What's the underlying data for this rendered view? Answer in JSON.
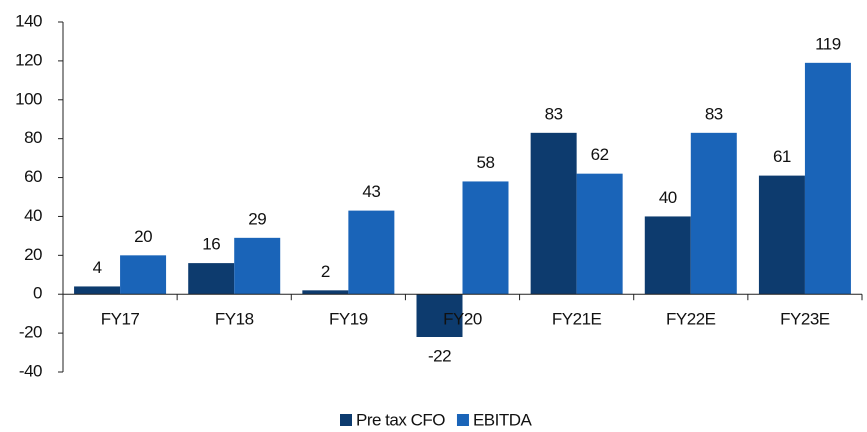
{
  "chart_data": {
    "type": "bar",
    "categories": [
      "FY17",
      "FY18",
      "FY19",
      "FY20",
      "FY21E",
      "FY22E",
      "FY23E"
    ],
    "series": [
      {
        "name": "Pre tax CFO",
        "color": "#0d3b6e",
        "values": [
          4,
          16,
          2,
          -22,
          83,
          40,
          61
        ]
      },
      {
        "name": "EBITDA",
        "color": "#1a64b8",
        "values": [
          20,
          29,
          43,
          58,
          62,
          83,
          119
        ]
      }
    ],
    "ylim": [
      -40,
      140
    ],
    "yticks": [
      -40,
      -20,
      0,
      20,
      40,
      60,
      80,
      100,
      120,
      140
    ],
    "grid": false,
    "legend": "bottom"
  }
}
